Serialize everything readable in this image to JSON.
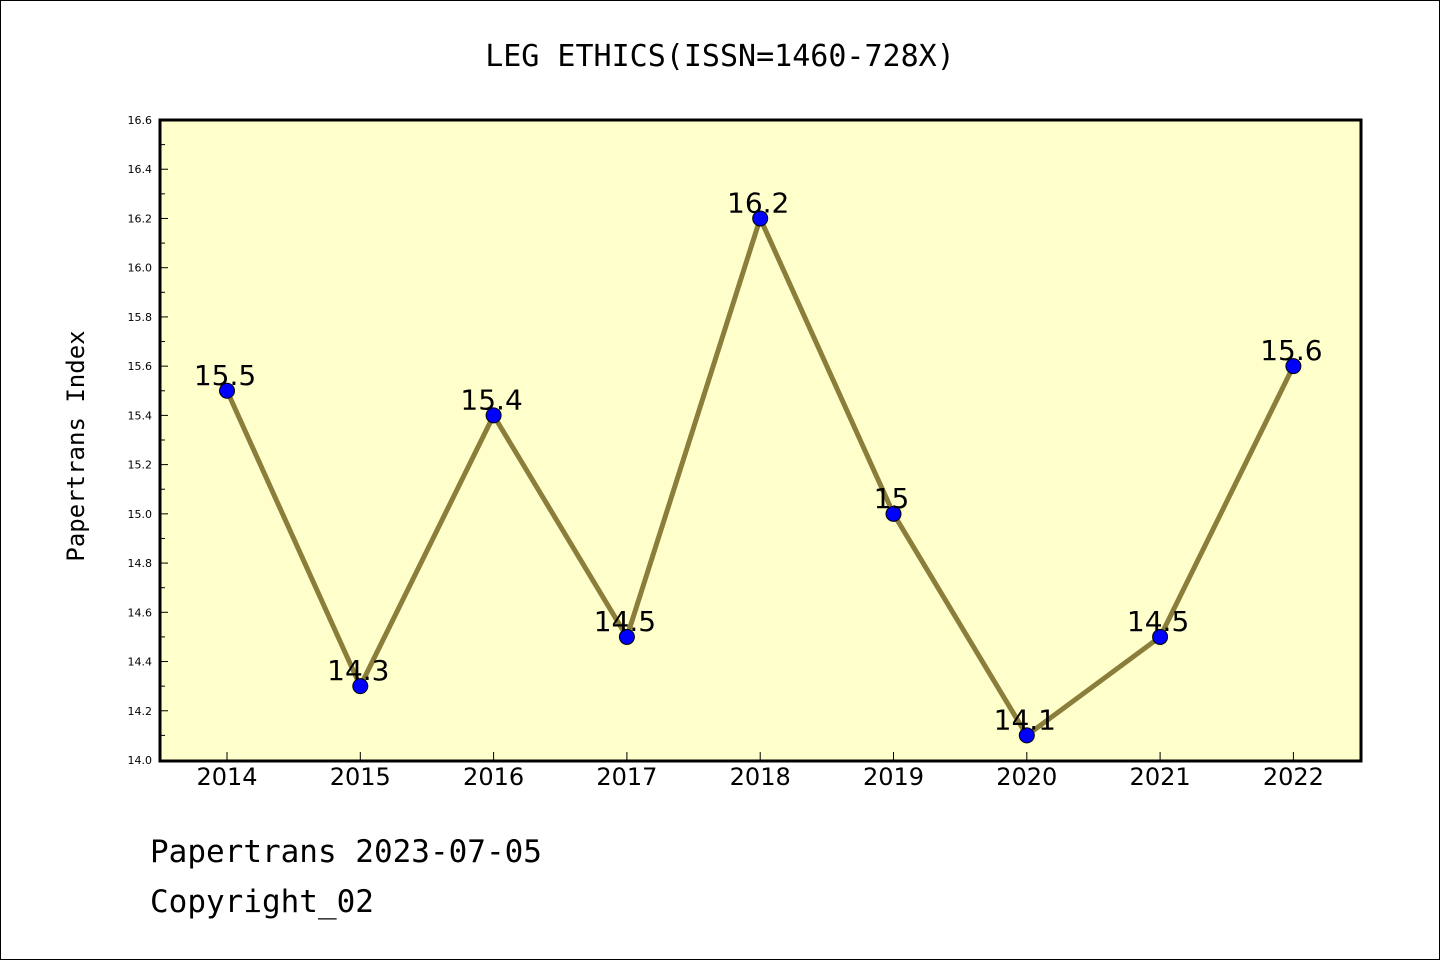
{
  "chart_data": {
    "type": "line",
    "title": "LEG ETHICS(ISSN=1460-728X)",
    "xlabel": "",
    "ylabel": "Papertrans Index",
    "categories": [
      "2014",
      "2015",
      "2016",
      "2017",
      "2018",
      "2019",
      "2020",
      "2021",
      "2022"
    ],
    "values": [
      15.5,
      14.3,
      15.4,
      14.5,
      16.2,
      15.0,
      14.1,
      14.5,
      15.6
    ],
    "data_labels": [
      "15.5",
      "14.3",
      "15.4",
      "14.5",
      "16.2",
      "15",
      "14.1",
      "14.5",
      "15.6"
    ],
    "ylim": [
      14.0,
      16.6
    ],
    "yticks": [
      "14.0",
      "14.2",
      "14.4",
      "14.6",
      "14.8",
      "15.0",
      "15.2",
      "15.4",
      "15.6",
      "15.8",
      "16.0",
      "16.2",
      "16.4",
      "16.6"
    ],
    "grid": false,
    "colors": {
      "plot_background": "#ffffcc",
      "line": "#8b7d3a",
      "marker": "#0000ff"
    }
  },
  "footer": {
    "line1": "Papertrans 2023-07-05",
    "line2": "Copyright_02"
  }
}
